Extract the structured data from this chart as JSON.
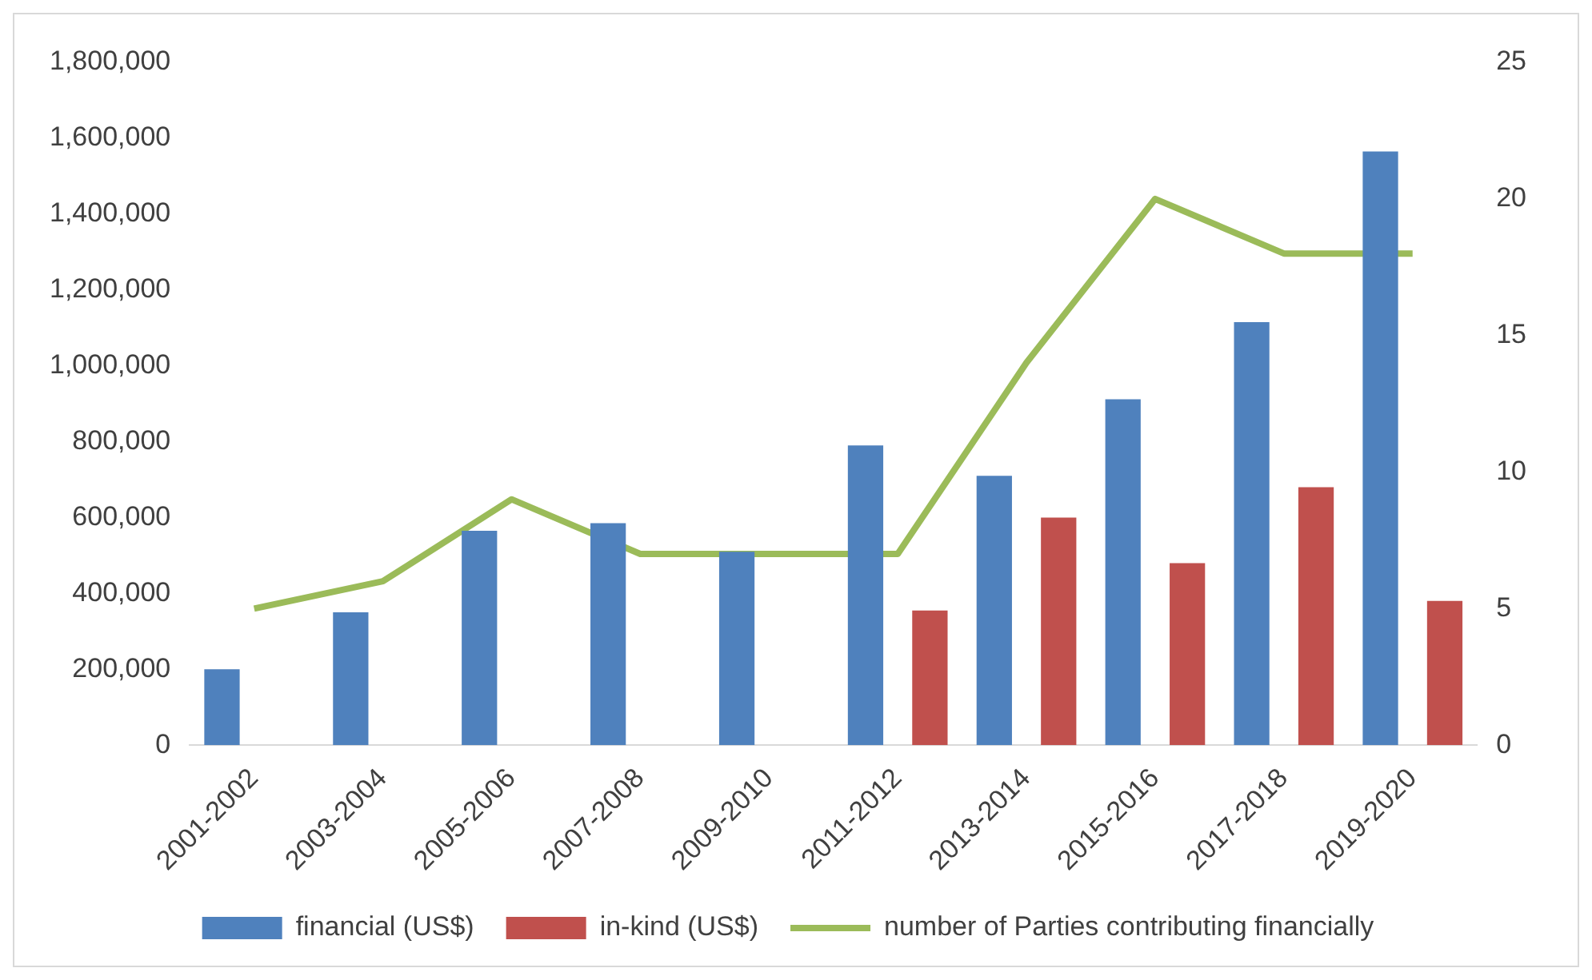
{
  "chart_data": {
    "type": "bar",
    "categories": [
      "2001-2002",
      "2003-2004",
      "2005-2006",
      "2007-2008",
      "2009-2010",
      "2011-2012",
      "2013-2014",
      "2015-2016",
      "2017-2018",
      "2019-2020"
    ],
    "series": [
      {
        "name": "financial (US$)",
        "color": "#4f81bd",
        "values": [
          200000,
          350000,
          565000,
          585000,
          510000,
          790000,
          710000,
          912000,
          1115000,
          1565000
        ]
      },
      {
        "name": "in-kind (US$)",
        "color": "#c0504d",
        "values": [
          null,
          null,
          null,
          null,
          null,
          355000,
          600000,
          480000,
          680000,
          380000
        ]
      },
      {
        "name": "number of Parties contributing financially",
        "type": "line",
        "axis": "y2",
        "color": "#9bbb59",
        "values": [
          5,
          6,
          9,
          7,
          7,
          7,
          14,
          20,
          18,
          18
        ]
      }
    ],
    "ylim": [
      0,
      1800000
    ],
    "yticks": [
      0,
      {
        "value": 200000,
        "label": "200,000"
      },
      {
        "value": 400000,
        "label": "400,000"
      },
      {
        "value": 600000,
        "label": "600,000"
      },
      {
        "value": 800000,
        "label": "800,000"
      },
      {
        "value": 1000000,
        "label": "1,000,000"
      },
      {
        "value": 1200000,
        "label": "1,200,000"
      },
      {
        "value": 1400000,
        "label": "1,400,000"
      },
      {
        "value": 1600000,
        "label": "1,600,000"
      },
      {
        "value": 1800000,
        "label": "1,800,000"
      }
    ],
    "y2lim": [
      0,
      25
    ],
    "y2ticks": [
      0,
      5,
      10,
      15,
      20,
      25
    ],
    "grid": false,
    "legend": "bottom",
    "marker": "none"
  }
}
